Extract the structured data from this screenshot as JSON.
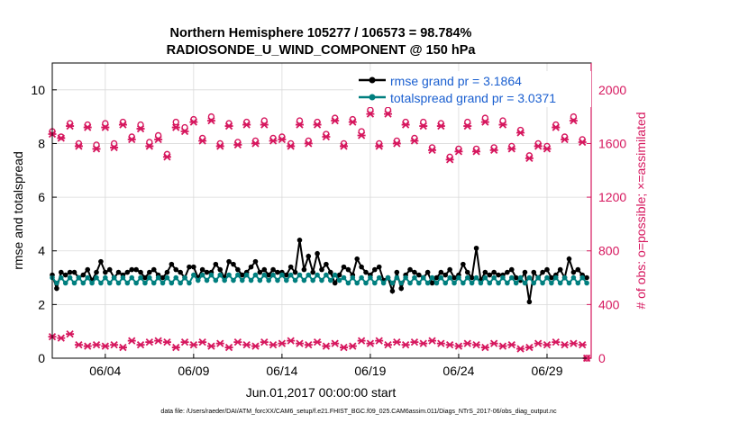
{
  "chart_data": {
    "type": "line",
    "title_lines": [
      "Northern Hemisphere 105277 / 106573 = 98.784%",
      "RADIOSONDE_U_WIND_COMPONENT @ 150 hPa"
    ],
    "xlabel": "Jun.01,2017 00:00:00 start",
    "ylabel_left": "rmse and totalspread",
    "ylabel_right": "# of obs: o=possible; ×=assimilated",
    "footer": "data file: /Users/raeder/DAI/ATM_forcXX/CAM6_setup/f.e21.FHIST_BGC.f09_025.CAM6assim.011/Diags_NTrS_2017-06/obs_diag_output.nc",
    "x_range": [
      0.0,
      30.5
    ],
    "x_ticks": [
      3,
      8,
      13,
      18,
      23,
      28
    ],
    "x_tick_labels": [
      "06/04",
      "06/09",
      "06/14",
      "06/19",
      "06/24",
      "06/29"
    ],
    "y_left_range": [
      0,
      11
    ],
    "y_left_ticks": [
      0,
      2,
      4,
      6,
      8,
      10
    ],
    "y_left_tick_labels": [
      "0",
      "2",
      "4",
      "6",
      "8",
      "10"
    ],
    "y_right_range": [
      0,
      2200
    ],
    "y_right_ticks": [
      0,
      400,
      800,
      1200,
      1600,
      2000
    ],
    "y_right_tick_labels": [
      "0",
      "400",
      "800",
      "1200",
      "1600",
      "2000"
    ],
    "colors": {
      "rmse": "#000000",
      "totalspread": "#007f7f",
      "obs": "#d6175e",
      "legend_text": "#1a5fd0",
      "grid": "#d9d9d9"
    },
    "legend": [
      "rmse grand pr = 3.1864",
      "totalspread grand pr = 3.0371"
    ],
    "series": [
      {
        "name": "rmse",
        "axis": "left",
        "x": [
          0.0,
          0.25,
          0.5,
          0.75,
          1.0,
          1.25,
          1.5,
          1.75,
          2.0,
          2.25,
          2.5,
          2.75,
          3.0,
          3.25,
          3.5,
          3.75,
          4.0,
          4.25,
          4.5,
          4.75,
          5.0,
          5.25,
          5.5,
          5.75,
          6.0,
          6.25,
          6.5,
          6.75,
          7.0,
          7.25,
          7.5,
          7.75,
          8.0,
          8.25,
          8.5,
          8.75,
          9.0,
          9.25,
          9.5,
          9.75,
          10.0,
          10.25,
          10.5,
          10.75,
          11.0,
          11.25,
          11.5,
          11.75,
          12.0,
          12.25,
          12.5,
          12.75,
          13.0,
          13.25,
          13.5,
          13.75,
          14.0,
          14.25,
          14.5,
          14.75,
          15.0,
          15.25,
          15.5,
          15.75,
          16.0,
          16.25,
          16.5,
          16.75,
          17.0,
          17.25,
          17.5,
          17.75,
          18.0,
          18.25,
          18.5,
          18.75,
          19.0,
          19.25,
          19.5,
          19.75,
          20.0,
          20.25,
          20.5,
          20.75,
          21.0,
          21.25,
          21.5,
          21.75,
          22.0,
          22.25,
          22.5,
          22.75,
          23.0,
          23.25,
          23.5,
          23.75,
          24.0,
          24.25,
          24.5,
          24.75,
          25.0,
          25.25,
          25.5,
          25.75,
          26.0,
          26.25,
          26.5,
          26.75,
          27.0,
          27.25,
          27.5,
          27.75,
          28.0,
          28.25,
          28.5,
          28.75,
          29.0,
          29.25,
          29.5,
          29.75,
          30.0,
          30.25
        ],
        "values": [
          3.1,
          2.6,
          3.2,
          3.1,
          3.2,
          3.2,
          3.0,
          3.1,
          3.3,
          2.9,
          3.2,
          3.6,
          3.2,
          3.3,
          3.0,
          3.2,
          3.1,
          3.2,
          3.3,
          3.3,
          3.2,
          3.0,
          3.2,
          3.3,
          3.1,
          3.0,
          3.2,
          3.5,
          3.3,
          3.2,
          3.0,
          3.4,
          3.4,
          3.0,
          3.3,
          3.2,
          3.2,
          3.5,
          3.3,
          3.0,
          3.6,
          3.5,
          3.3,
          3.1,
          3.2,
          3.4,
          3.6,
          3.2,
          3.3,
          3.1,
          3.3,
          3.2,
          3.2,
          3.1,
          3.4,
          3.2,
          4.4,
          3.3,
          3.8,
          3.2,
          3.9,
          3.3,
          3.5,
          3.2,
          2.8,
          3.1,
          3.4,
          3.3,
          3.1,
          3.7,
          3.4,
          3.2,
          3.1,
          3.3,
          3.4,
          2.9,
          3.0,
          2.5,
          3.2,
          2.6,
          3.1,
          3.3,
          3.2,
          3.1,
          3.0,
          3.2,
          2.8,
          3.0,
          3.2,
          3.1,
          3.3,
          3.0,
          3.1,
          3.5,
          3.2,
          3.0,
          4.1,
          2.9,
          3.2,
          3.1,
          3.2,
          3.1,
          3.1,
          3.2,
          3.3,
          3.0,
          2.9,
          3.2,
          2.1,
          3.2,
          3.0,
          3.2,
          3.3,
          3.0,
          3.1,
          3.3,
          3.0,
          3.7,
          3.2,
          3.3,
          3.1,
          3.0
        ]
      },
      {
        "name": "totalspread",
        "axis": "left",
        "x": [
          0.0,
          0.25,
          0.5,
          0.75,
          1.0,
          1.25,
          1.5,
          1.75,
          2.0,
          2.25,
          2.5,
          2.75,
          3.0,
          3.25,
          3.5,
          3.75,
          4.0,
          4.25,
          4.5,
          4.75,
          5.0,
          5.25,
          5.5,
          5.75,
          6.0,
          6.25,
          6.5,
          6.75,
          7.0,
          7.25,
          7.5,
          7.75,
          8.0,
          8.25,
          8.5,
          8.75,
          9.0,
          9.25,
          9.5,
          9.75,
          10.0,
          10.25,
          10.5,
          10.75,
          11.0,
          11.25,
          11.5,
          11.75,
          12.0,
          12.25,
          12.5,
          12.75,
          13.0,
          13.25,
          13.5,
          13.75,
          14.0,
          14.25,
          14.5,
          14.75,
          15.0,
          15.25,
          15.5,
          15.75,
          16.0,
          16.25,
          16.5,
          16.75,
          17.0,
          17.25,
          17.5,
          17.75,
          18.0,
          18.25,
          18.5,
          18.75,
          19.0,
          19.25,
          19.5,
          19.75,
          20.0,
          20.25,
          20.5,
          20.75,
          21.0,
          21.25,
          21.5,
          21.75,
          22.0,
          22.25,
          22.5,
          22.75,
          23.0,
          23.25,
          23.5,
          23.75,
          24.0,
          24.25,
          24.5,
          24.75,
          25.0,
          25.25,
          25.5,
          25.75,
          26.0,
          26.25,
          26.5,
          26.75,
          27.0,
          27.25,
          27.5,
          27.75,
          28.0,
          28.25,
          28.5,
          28.75,
          29.0,
          29.25,
          29.5,
          29.75,
          30.0,
          30.25
        ],
        "values": [
          3.0,
          2.8,
          3.0,
          2.8,
          3.0,
          2.8,
          3.0,
          2.8,
          3.0,
          2.8,
          3.0,
          2.8,
          3.0,
          2.8,
          3.0,
          2.8,
          3.0,
          2.8,
          3.0,
          2.8,
          3.0,
          2.8,
          3.0,
          2.8,
          3.0,
          2.8,
          3.0,
          2.8,
          3.0,
          2.8,
          3.0,
          2.8,
          3.1,
          2.9,
          3.1,
          2.9,
          3.1,
          2.9,
          3.1,
          2.9,
          3.1,
          2.9,
          3.1,
          2.9,
          3.1,
          2.9,
          3.1,
          2.9,
          3.1,
          2.9,
          3.1,
          2.9,
          3.1,
          2.9,
          3.1,
          2.9,
          3.1,
          2.9,
          3.1,
          2.9,
          3.1,
          2.9,
          3.1,
          2.9,
          3.1,
          2.9,
          3.0,
          2.8,
          3.0,
          2.8,
          3.0,
          2.8,
          3.0,
          2.8,
          3.0,
          2.8,
          3.0,
          2.8,
          3.0,
          2.8,
          3.0,
          2.8,
          3.0,
          2.8,
          3.0,
          2.8,
          3.0,
          2.8,
          3.0,
          2.8,
          3.0,
          2.8,
          3.0,
          2.8,
          3.0,
          2.8,
          3.0,
          2.8,
          3.0,
          2.8,
          3.0,
          2.8,
          3.0,
          2.8,
          3.0,
          2.8,
          3.0,
          2.8,
          3.0,
          2.8,
          3.0,
          2.8,
          3.0,
          2.8,
          3.0,
          2.8,
          3.0,
          2.8,
          3.0,
          2.8,
          3.0,
          2.8
        ]
      },
      {
        "name": "obs possible",
        "axis": "right",
        "marker": "circle",
        "x": [
          0.0,
          0.5,
          1.0,
          1.5,
          2.0,
          2.5,
          3.0,
          3.5,
          4.0,
          4.5,
          5.0,
          5.5,
          6.0,
          6.5,
          7.0,
          7.5,
          8.0,
          8.5,
          9.0,
          9.5,
          10.0,
          10.5,
          11.0,
          11.5,
          12.0,
          12.5,
          13.0,
          13.5,
          14.0,
          14.5,
          15.0,
          15.5,
          16.0,
          16.5,
          17.0,
          17.5,
          18.0,
          18.5,
          19.0,
          19.5,
          20.0,
          20.5,
          21.0,
          21.5,
          22.0,
          22.5,
          23.0,
          23.5,
          24.0,
          24.5,
          25.0,
          25.5,
          26.0,
          26.5,
          27.0,
          27.5,
          28.0,
          28.5,
          29.0,
          29.5,
          30.0,
          30.25
        ],
        "values": [
          1690,
          1650,
          1750,
          1600,
          1740,
          1590,
          1750,
          1600,
          1760,
          1650,
          1740,
          1610,
          1660,
          1520,
          1760,
          1720,
          1780,
          1640,
          1800,
          1600,
          1750,
          1610,
          1760,
          1620,
          1770,
          1640,
          1650,
          1600,
          1770,
          1620,
          1760,
          1670,
          1790,
          1600,
          1780,
          1690,
          1850,
          1600,
          1850,
          1620,
          1760,
          1640,
          1760,
          1570,
          1750,
          1500,
          1560,
          1760,
          1560,
          1790,
          1570,
          1770,
          1580,
          1700,
          1510,
          1600,
          1580,
          1740,
          1650,
          1800,
          1630,
          0
        ]
      },
      {
        "name": "obs assimilated",
        "axis": "right",
        "marker": "x",
        "x": [
          0.0,
          0.5,
          1.0,
          1.5,
          2.0,
          2.5,
          3.0,
          3.5,
          4.0,
          4.5,
          5.0,
          5.5,
          6.0,
          6.5,
          7.0,
          7.5,
          8.0,
          8.5,
          9.0,
          9.5,
          10.0,
          10.5,
          11.0,
          11.5,
          12.0,
          12.5,
          13.0,
          13.5,
          14.0,
          14.5,
          15.0,
          15.5,
          16.0,
          16.5,
          17.0,
          17.5,
          18.0,
          18.5,
          19.0,
          19.5,
          20.0,
          20.5,
          21.0,
          21.5,
          22.0,
          22.5,
          23.0,
          23.5,
          24.0,
          24.5,
          25.0,
          25.5,
          26.0,
          26.5,
          27.0,
          27.5,
          28.0,
          28.5,
          29.0,
          29.5,
          30.0,
          30.25
        ],
        "values": [
          1670,
          1640,
          1730,
          1580,
          1720,
          1560,
          1720,
          1570,
          1740,
          1630,
          1710,
          1580,
          1630,
          1500,
          1720,
          1690,
          1760,
          1620,
          1770,
          1580,
          1730,
          1590,
          1740,
          1600,
          1740,
          1620,
          1630,
          1580,
          1740,
          1600,
          1740,
          1650,
          1770,
          1580,
          1760,
          1660,
          1820,
          1580,
          1820,
          1600,
          1740,
          1620,
          1730,
          1550,
          1730,
          1480,
          1540,
          1730,
          1540,
          1760,
          1550,
          1740,
          1560,
          1680,
          1490,
          1580,
          1560,
          1720,
          1630,
          1770,
          1610,
          0
        ]
      },
      {
        "name": "obs lower assimilated",
        "axis": "right",
        "marker": "x",
        "x": [
          0.0,
          0.5,
          1.0,
          1.5,
          2.0,
          2.5,
          3.0,
          3.5,
          4.0,
          4.5,
          5.0,
          5.5,
          6.0,
          6.5,
          7.0,
          7.5,
          8.0,
          8.5,
          9.0,
          9.5,
          10.0,
          10.5,
          11.0,
          11.5,
          12.0,
          12.5,
          13.0,
          13.5,
          14.0,
          14.5,
          15.0,
          15.5,
          16.0,
          16.5,
          17.0,
          17.5,
          18.0,
          18.5,
          19.0,
          19.5,
          20.0,
          20.5,
          21.0,
          21.5,
          22.0,
          22.5,
          23.0,
          23.5,
          24.0,
          24.5,
          25.0,
          25.5,
          26.0,
          26.5,
          27.0,
          27.5,
          28.0,
          28.5,
          29.0,
          29.5,
          30.0
        ],
        "values": [
          160,
          150,
          180,
          100,
          90,
          100,
          90,
          100,
          80,
          130,
          100,
          120,
          130,
          120,
          80,
          120,
          100,
          120,
          90,
          110,
          80,
          120,
          100,
          90,
          120,
          100,
          110,
          130,
          110,
          100,
          120,
          90,
          110,
          80,
          90,
          130,
          110,
          130,
          100,
          120,
          100,
          120,
          110,
          130,
          110,
          100,
          90,
          110,
          100,
          80,
          110,
          90,
          100,
          70,
          80,
          110,
          100,
          120,
          100,
          110,
          100
        ]
      }
    ]
  }
}
